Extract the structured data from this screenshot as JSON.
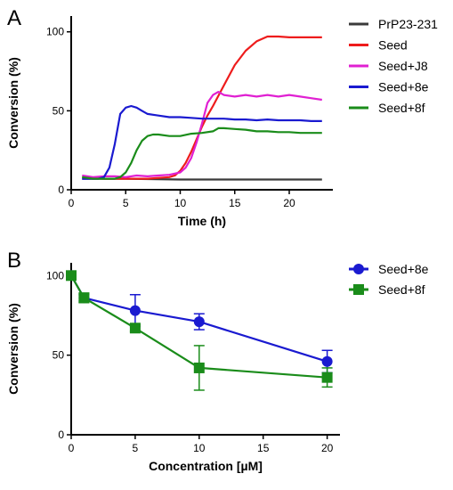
{
  "chart_data": [
    {
      "panel": "A",
      "type": "line",
      "xlabel": "Time (h)",
      "ylabel": "Conversion (%)",
      "xlim": [
        0,
        24
      ],
      "ylim": [
        0,
        110
      ],
      "xticks": [
        0,
        5,
        10,
        15,
        20
      ],
      "yticks": [
        0,
        50,
        100
      ],
      "legend_position": "right",
      "series": [
        {
          "name": "PrP23-231",
          "color": "#3a3a3a",
          "x": [
            1,
            5,
            10,
            15,
            20,
            23
          ],
          "y": [
            7,
            7,
            6.5,
            6.5,
            6.5,
            6.5
          ]
        },
        {
          "name": "Seed",
          "color": "#ee1c1c",
          "x": [
            1,
            2,
            3,
            4,
            5,
            6,
            7,
            8,
            9,
            9.5,
            10,
            10.5,
            11,
            11.5,
            12,
            12.5,
            13,
            14,
            15,
            16,
            17,
            18,
            19,
            20,
            21,
            22,
            23
          ],
          "y": [
            8,
            7.5,
            7,
            7,
            7,
            7,
            7,
            7.5,
            8,
            9,
            12,
            17,
            24,
            32,
            40,
            47,
            53,
            66,
            79,
            88,
            94,
            97,
            97,
            96.5,
            96.5,
            96.5,
            96.5
          ]
        },
        {
          "name": "Seed+J8",
          "color": "#e020d2",
          "x": [
            1,
            2,
            3,
            4,
            5,
            6,
            7,
            8,
            9,
            10,
            10.5,
            11,
            11.5,
            12,
            12.5,
            13,
            13.5,
            14,
            15,
            16,
            17,
            18,
            19,
            20,
            21,
            22,
            23
          ],
          "y": [
            9,
            8,
            8.5,
            8.5,
            8,
            9,
            8.5,
            9,
            9.5,
            11,
            14,
            20,
            30,
            42,
            55,
            60,
            62,
            60,
            59,
            60,
            59,
            60,
            59,
            60,
            59,
            58,
            57
          ]
        },
        {
          "name": "Seed+8e",
          "color": "#1a1ad0",
          "x": [
            1,
            2,
            2.5,
            3,
            3.5,
            4,
            4.5,
            5,
            5.5,
            6,
            6.5,
            7,
            8,
            9,
            10,
            11,
            12,
            13,
            14,
            15,
            16,
            17,
            18,
            19,
            20,
            21,
            22,
            23
          ],
          "y": [
            7,
            7,
            7,
            8,
            14,
            29,
            48,
            52,
            53,
            52,
            50,
            48,
            47,
            46,
            46,
            45.5,
            45,
            45,
            45,
            44.5,
            44.5,
            44,
            44.5,
            44,
            44,
            44,
            43.5,
            43.5
          ]
        },
        {
          "name": "Seed+8f",
          "color": "#1a8c1a",
          "x": [
            1,
            2,
            3,
            4,
            4.5,
            5,
            5.5,
            6,
            6.5,
            7,
            7.5,
            8,
            9,
            10,
            11,
            12,
            13,
            13.5,
            14,
            15,
            16,
            17,
            18,
            19,
            20,
            21,
            22,
            23
          ],
          "y": [
            8,
            7,
            7,
            7,
            8,
            11,
            17,
            25,
            31,
            34,
            35,
            35,
            34,
            34,
            35.5,
            36,
            37,
            39,
            39,
            38.5,
            38,
            37,
            37,
            36.5,
            36.5,
            36,
            36,
            36
          ]
        }
      ]
    },
    {
      "panel": "B",
      "type": "line",
      "xlabel": "Concentration [µM]",
      "ylabel": "Conversion (%)",
      "xlim": [
        0,
        21
      ],
      "ylim": [
        0,
        108
      ],
      "xticks": [
        0,
        5,
        10,
        15,
        20
      ],
      "yticks": [
        0,
        50,
        100
      ],
      "legend_position": "right",
      "series": [
        {
          "name": "Seed+8e",
          "color": "#1a1ad0",
          "marker": "circle",
          "x": [
            0,
            1,
            5,
            10,
            20
          ],
          "y": [
            100,
            86,
            78,
            71,
            46
          ],
          "err": [
            1.5,
            2,
            10,
            5,
            7
          ]
        },
        {
          "name": "Seed+8f",
          "color": "#1a8c1a",
          "marker": "square",
          "x": [
            0,
            1,
            5,
            10,
            20
          ],
          "y": [
            100,
            86,
            67,
            42,
            36
          ],
          "err": [
            1.5,
            3,
            2,
            14,
            6
          ]
        }
      ]
    }
  ],
  "labels": {
    "panel_a": "A",
    "panel_b": "B"
  }
}
